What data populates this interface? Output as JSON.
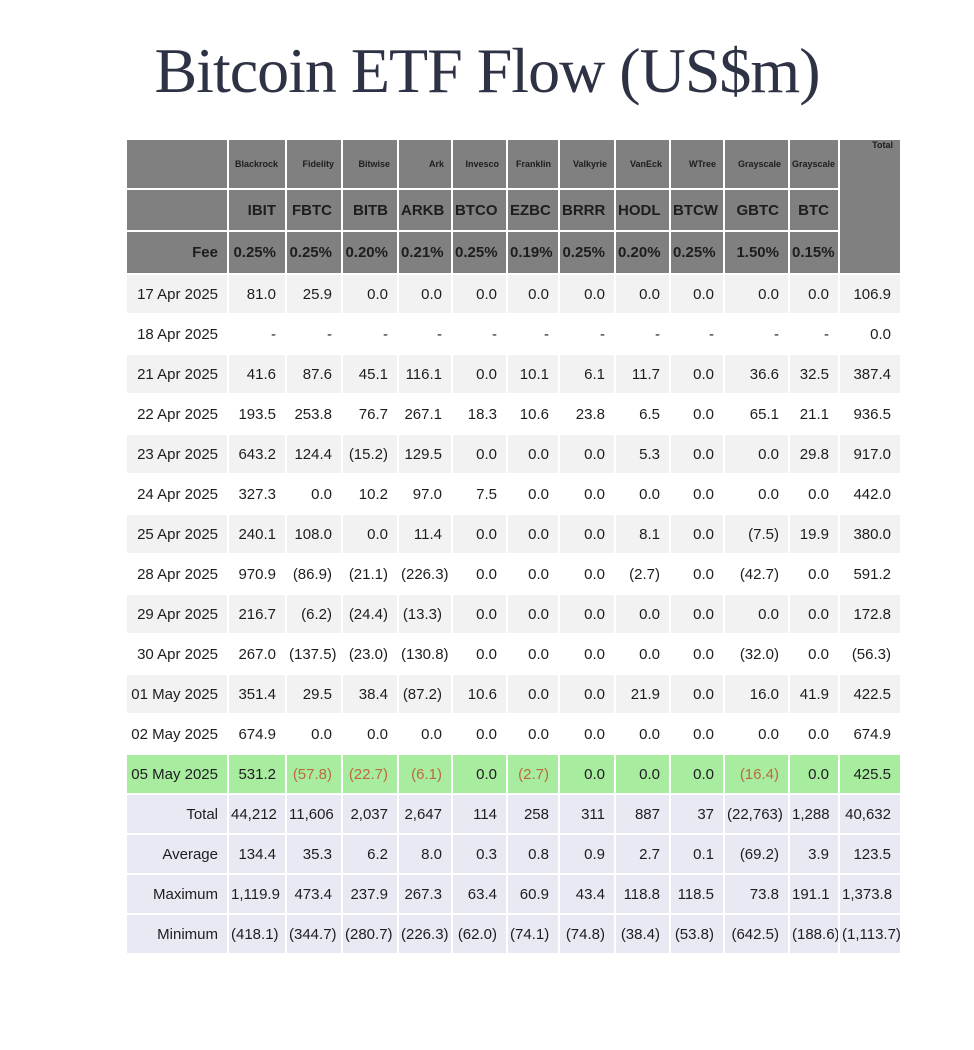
{
  "title": "Bitcoin ETF Flow (US$m)",
  "colors": {
    "header_bg": "#808080",
    "row_alt_bg": "#f2f2f2",
    "highlight_row_bg": "#a8ec9f",
    "summary_row_bg": "#e9e9f4",
    "negative_text": "#cb5551",
    "negative_text_on_green": "#bc6a3e",
    "title_text": "#2d3245"
  },
  "chart_data": {
    "type": "table",
    "title": "Bitcoin ETF Flow (US$m)",
    "providers": [
      "Blackrock",
      "Fidelity",
      "Bitwise",
      "Ark",
      "Invesco",
      "Franklin",
      "Valkyrie",
      "VanEck",
      "WTree",
      "Grayscale",
      "Grayscale"
    ],
    "tickers": [
      "IBIT",
      "FBTC",
      "BITB",
      "ARKB",
      "BTCO",
      "EZBC",
      "BRRR",
      "HODL",
      "BTCW",
      "GBTC",
      "BTC"
    ],
    "fee_label": "Fee",
    "fees": [
      "0.25%",
      "0.25%",
      "0.20%",
      "0.21%",
      "0.25%",
      "0.19%",
      "0.25%",
      "0.20%",
      "0.25%",
      "1.50%",
      "0.15%"
    ],
    "total_header": "Total",
    "rows": [
      {
        "date": "17 Apr 2025",
        "values": [
          "81.0",
          "25.9",
          "0.0",
          "0.0",
          "0.0",
          "0.0",
          "0.0",
          "0.0",
          "0.0",
          "0.0",
          "0.0"
        ],
        "total": "106.9",
        "highlight": false
      },
      {
        "date": "18 Apr 2025",
        "values": [
          "-",
          "-",
          "-",
          "-",
          "-",
          "-",
          "-",
          "-",
          "-",
          "-",
          "-"
        ],
        "total": "0.0",
        "highlight": false
      },
      {
        "date": "21 Apr 2025",
        "values": [
          "41.6",
          "87.6",
          "45.1",
          "116.1",
          "0.0",
          "10.1",
          "6.1",
          "11.7",
          "0.0",
          "36.6",
          "32.5"
        ],
        "total": "387.4",
        "highlight": false
      },
      {
        "date": "22 Apr 2025",
        "values": [
          "193.5",
          "253.8",
          "76.7",
          "267.1",
          "18.3",
          "10.6",
          "23.8",
          "6.5",
          "0.0",
          "65.1",
          "21.1"
        ],
        "total": "936.5",
        "highlight": false
      },
      {
        "date": "23 Apr 2025",
        "values": [
          "643.2",
          "124.4",
          "(15.2)",
          "129.5",
          "0.0",
          "0.0",
          "0.0",
          "5.3",
          "0.0",
          "0.0",
          "29.8"
        ],
        "total": "917.0",
        "highlight": false
      },
      {
        "date": "24 Apr 2025",
        "values": [
          "327.3",
          "0.0",
          "10.2",
          "97.0",
          "7.5",
          "0.0",
          "0.0",
          "0.0",
          "0.0",
          "0.0",
          "0.0"
        ],
        "total": "442.0",
        "highlight": false
      },
      {
        "date": "25 Apr 2025",
        "values": [
          "240.1",
          "108.0",
          "0.0",
          "11.4",
          "0.0",
          "0.0",
          "0.0",
          "8.1",
          "0.0",
          "(7.5)",
          "19.9"
        ],
        "total": "380.0",
        "highlight": false
      },
      {
        "date": "28 Apr 2025",
        "values": [
          "970.9",
          "(86.9)",
          "(21.1)",
          "(226.3)",
          "0.0",
          "0.0",
          "0.0",
          "(2.7)",
          "0.0",
          "(42.7)",
          "0.0"
        ],
        "total": "591.2",
        "highlight": false
      },
      {
        "date": "29 Apr 2025",
        "values": [
          "216.7",
          "(6.2)",
          "(24.4)",
          "(13.3)",
          "0.0",
          "0.0",
          "0.0",
          "0.0",
          "0.0",
          "0.0",
          "0.0"
        ],
        "total": "172.8",
        "highlight": false
      },
      {
        "date": "30 Apr 2025",
        "values": [
          "267.0",
          "(137.5)",
          "(23.0)",
          "(130.8)",
          "0.0",
          "0.0",
          "0.0",
          "0.0",
          "0.0",
          "(32.0)",
          "0.0"
        ],
        "total": "(56.3)",
        "highlight": false
      },
      {
        "date": "01 May 2025",
        "values": [
          "351.4",
          "29.5",
          "38.4",
          "(87.2)",
          "10.6",
          "0.0",
          "0.0",
          "21.9",
          "0.0",
          "16.0",
          "41.9"
        ],
        "total": "422.5",
        "highlight": false
      },
      {
        "date": "02 May 2025",
        "values": [
          "674.9",
          "0.0",
          "0.0",
          "0.0",
          "0.0",
          "0.0",
          "0.0",
          "0.0",
          "0.0",
          "0.0",
          "0.0"
        ],
        "total": "674.9",
        "highlight": false
      },
      {
        "date": "05 May 2025",
        "values": [
          "531.2",
          "(57.8)",
          "(22.7)",
          "(6.1)",
          "0.0",
          "(2.7)",
          "0.0",
          "0.0",
          "0.0",
          "(16.4)",
          "0.0"
        ],
        "total": "425.5",
        "highlight": true
      }
    ],
    "summary": [
      {
        "label": "Total",
        "values": [
          "44,212",
          "11,606",
          "2,037",
          "2,647",
          "114",
          "258",
          "311",
          "887",
          "37",
          "(22,763)",
          "1,288"
        ],
        "total": "40,632"
      },
      {
        "label": "Average",
        "values": [
          "134.4",
          "35.3",
          "6.2",
          "8.0",
          "0.3",
          "0.8",
          "0.9",
          "2.7",
          "0.1",
          "(69.2)",
          "3.9"
        ],
        "total": "123.5"
      },
      {
        "label": "Maximum",
        "values": [
          "1,119.9",
          "473.4",
          "237.9",
          "267.3",
          "63.4",
          "60.9",
          "43.4",
          "118.8",
          "118.5",
          "73.8",
          "191.1"
        ],
        "total": "1,373.8"
      },
      {
        "label": "Minimum",
        "values": [
          "(418.1)",
          "(344.7)",
          "(280.7)",
          "(226.3)",
          "(62.0)",
          "(74.1)",
          "(74.8)",
          "(38.4)",
          "(53.8)",
          "(642.5)",
          "(188.6)"
        ],
        "total": "(1,113.7)"
      }
    ]
  }
}
